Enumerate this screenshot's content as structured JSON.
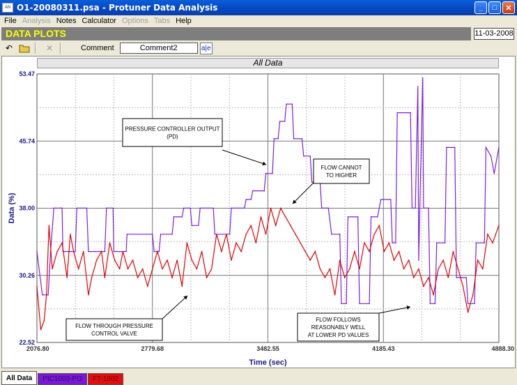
{
  "window": {
    "title": "O1-20080311.psa - Protuner Data  Analysis",
    "icon_text": "AN"
  },
  "menu": [
    {
      "label": "File",
      "enabled": true
    },
    {
      "label": "Analysis",
      "enabled": false
    },
    {
      "label": "Notes",
      "enabled": true
    },
    {
      "label": "Calculator",
      "enabled": true
    },
    {
      "label": "Options",
      "enabled": false
    },
    {
      "label": "Tabs",
      "enabled": false
    },
    {
      "label": "Help",
      "enabled": true
    }
  ],
  "header": {
    "title": "DATA PLOTS",
    "date": "11-03-2008"
  },
  "toolbar": {
    "comment_label": "Comment",
    "comment_value": "Comment2",
    "abc_label": "a|e"
  },
  "chart_title": "All Data",
  "tabs": [
    "All Data",
    "PIC1003-PO",
    "FT-1602"
  ],
  "colors": {
    "pv": "#e00000",
    "op": "#7a1fe0",
    "header_text": "#ffff00",
    "header_bg": "#7e7e7e"
  },
  "chart_data": {
    "type": "line",
    "title": "All Data",
    "xlabel": "Time (sec)",
    "ylabel": "Data (%)",
    "xlim": [
      2076.8,
      4888.3
    ],
    "ylim": [
      22.52,
      53.47
    ],
    "x_ticks": [
      "2076.80",
      "2779.68",
      "3482.55",
      "4185.43",
      "4888.30"
    ],
    "y_ticks": [
      "53.47",
      "45.74",
      "38.00",
      "30.26",
      "22.52"
    ],
    "grid": true,
    "series": [
      {
        "name": "PIC1003-PO",
        "points": [
          [
            2076.8,
            33
          ],
          [
            2110,
            28
          ],
          [
            2145,
            28
          ],
          [
            2160,
            33
          ],
          [
            2180,
            38
          ],
          [
            2230,
            38
          ],
          [
            2235,
            33
          ],
          [
            2310,
            33
          ],
          [
            2320,
            38
          ],
          [
            2380,
            38
          ],
          [
            2390,
            33
          ],
          [
            2490,
            33
          ],
          [
            2500,
            38
          ],
          [
            2540,
            38
          ],
          [
            2545,
            33
          ],
          [
            2620,
            33
          ],
          [
            2625,
            35
          ],
          [
            2780,
            35
          ],
          [
            2790,
            33
          ],
          [
            2820,
            33
          ],
          [
            2830,
            35
          ],
          [
            2900,
            35
          ],
          [
            2910,
            37
          ],
          [
            2960,
            37
          ],
          [
            2970,
            38
          ],
          [
            3010,
            38
          ],
          [
            3020,
            36
          ],
          [
            3060,
            36
          ],
          [
            3070,
            38
          ],
          [
            3150,
            38
          ],
          [
            3160,
            35
          ],
          [
            3250,
            35
          ],
          [
            3260,
            38
          ],
          [
            3340,
            38
          ],
          [
            3350,
            39
          ],
          [
            3380,
            39
          ],
          [
            3390,
            40
          ],
          [
            3460,
            40
          ],
          [
            3470,
            42
          ],
          [
            3510,
            42
          ],
          [
            3520,
            46
          ],
          [
            3545,
            46
          ],
          [
            3555,
            48
          ],
          [
            3585,
            48
          ],
          [
            3595,
            50
          ],
          [
            3630,
            50
          ],
          [
            3640,
            46
          ],
          [
            3690,
            46
          ],
          [
            3700,
            44
          ],
          [
            3740,
            44
          ],
          [
            3750,
            41
          ],
          [
            3800,
            41
          ],
          [
            3810,
            38
          ],
          [
            3850,
            38
          ],
          [
            3870,
            35
          ],
          [
            3920,
            35
          ],
          [
            3930,
            27
          ],
          [
            3960,
            27
          ],
          [
            3970,
            37
          ],
          [
            4030,
            37
          ],
          [
            4040,
            27
          ],
          [
            4100,
            27
          ],
          [
            4110,
            37
          ],
          [
            4150,
            37
          ],
          [
            4170,
            39
          ],
          [
            4230,
            39
          ],
          [
            4240,
            34
          ],
          [
            4260,
            34
          ],
          [
            4270,
            49
          ],
          [
            4350,
            49
          ],
          [
            4360,
            38
          ],
          [
            4380,
            38
          ],
          [
            4395,
            52
          ],
          [
            4400,
            32
          ],
          [
            4425,
            53
          ],
          [
            4430,
            38
          ],
          [
            4460,
            38
          ],
          [
            4470,
            27
          ],
          [
            4500,
            27
          ],
          [
            4510,
            34
          ],
          [
            4560,
            34
          ],
          [
            4570,
            45
          ],
          [
            4620,
            45
          ],
          [
            4630,
            30
          ],
          [
            4690,
            30
          ],
          [
            4700,
            27
          ],
          [
            4740,
            27
          ],
          [
            4750,
            34
          ],
          [
            4800,
            34
          ],
          [
            4810,
            45
          ],
          [
            4840,
            44
          ],
          [
            4860,
            42
          ],
          [
            4888,
            45
          ]
        ]
      },
      {
        "name": "FT-1602",
        "points": [
          [
            2076.8,
            29
          ],
          [
            2100,
            24
          ],
          [
            2120,
            25
          ],
          [
            2135,
            28
          ],
          [
            2150,
            36
          ],
          [
            2170,
            31
          ],
          [
            2200,
            33
          ],
          [
            2230,
            34
          ],
          [
            2260,
            30
          ],
          [
            2280,
            35
          ],
          [
            2300,
            33
          ],
          [
            2330,
            31
          ],
          [
            2360,
            33
          ],
          [
            2390,
            28
          ],
          [
            2410,
            30
          ],
          [
            2440,
            32
          ],
          [
            2470,
            33
          ],
          [
            2490,
            30
          ],
          [
            2520,
            34
          ],
          [
            2550,
            32
          ],
          [
            2580,
            31
          ],
          [
            2600,
            33
          ],
          [
            2630,
            31
          ],
          [
            2660,
            32
          ],
          [
            2690,
            30
          ],
          [
            2720,
            31
          ],
          [
            2750,
            29
          ],
          [
            2780,
            31
          ],
          [
            2810,
            33
          ],
          [
            2840,
            31
          ],
          [
            2870,
            32
          ],
          [
            2900,
            30
          ],
          [
            2930,
            32
          ],
          [
            2960,
            29
          ],
          [
            2990,
            34
          ],
          [
            3020,
            32
          ],
          [
            3050,
            31
          ],
          [
            3080,
            33
          ],
          [
            3110,
            30
          ],
          [
            3140,
            31
          ],
          [
            3170,
            35
          ],
          [
            3200,
            33
          ],
          [
            3230,
            35
          ],
          [
            3260,
            32
          ],
          [
            3290,
            34
          ],
          [
            3320,
            33
          ],
          [
            3350,
            35
          ],
          [
            3380,
            36
          ],
          [
            3410,
            34
          ],
          [
            3440,
            37
          ],
          [
            3470,
            35
          ],
          [
            3500,
            38
          ],
          [
            3530,
            36
          ],
          [
            3560,
            38
          ],
          [
            3590,
            37
          ],
          [
            3620,
            36
          ],
          [
            3650,
            35
          ],
          [
            3680,
            34
          ],
          [
            3710,
            33
          ],
          [
            3740,
            32
          ],
          [
            3770,
            33
          ],
          [
            3800,
            31
          ],
          [
            3830,
            30
          ],
          [
            3860,
            31
          ],
          [
            3890,
            28
          ],
          [
            3920,
            32
          ],
          [
            3950,
            30
          ],
          [
            3980,
            31
          ],
          [
            4010,
            33
          ],
          [
            4040,
            31
          ],
          [
            4070,
            34
          ],
          [
            4100,
            33
          ],
          [
            4130,
            35
          ],
          [
            4160,
            36
          ],
          [
            4190,
            33
          ],
          [
            4220,
            34
          ],
          [
            4250,
            32
          ],
          [
            4280,
            33
          ],
          [
            4310,
            31
          ],
          [
            4340,
            32
          ],
          [
            4370,
            30
          ],
          [
            4400,
            31
          ],
          [
            4430,
            29
          ],
          [
            4460,
            30
          ],
          [
            4490,
            28
          ],
          [
            4520,
            31
          ],
          [
            4550,
            32
          ],
          [
            4580,
            30
          ],
          [
            4610,
            33
          ],
          [
            4640,
            31
          ],
          [
            4670,
            29
          ],
          [
            4700,
            26
          ],
          [
            4730,
            28
          ],
          [
            4760,
            32
          ],
          [
            4790,
            31
          ],
          [
            4820,
            35
          ],
          [
            4850,
            34
          ],
          [
            4888,
            36
          ]
        ]
      }
    ],
    "annotations": [
      {
        "text": [
          "PRESSURE CONTROLLER OUTPUT",
          "(PD)"
        ]
      },
      {
        "text": [
          "FLOW CANNOT",
          "TO HIGHER"
        ]
      },
      {
        "text": [
          "FLOW THROUGH PRESSURE",
          "CONTROL VALVE"
        ]
      },
      {
        "text": [
          "FLOW FOLLOWS",
          "REASONABLY WELL",
          "AT LOWER PD VALUES"
        ]
      }
    ]
  }
}
